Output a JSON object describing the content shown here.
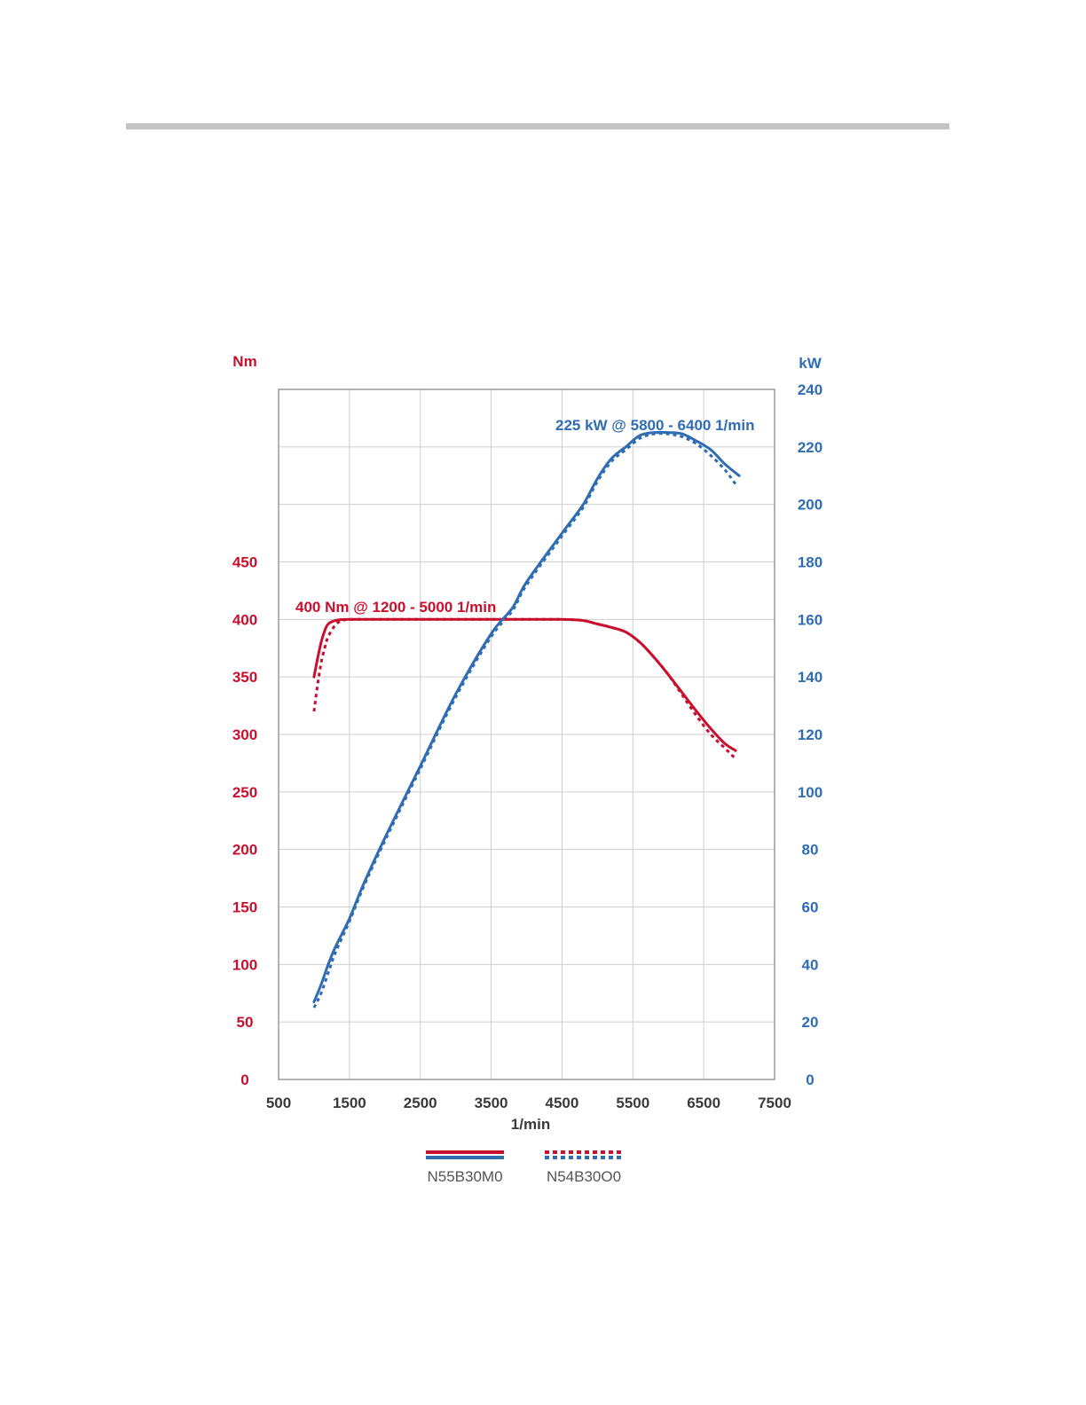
{
  "chart_data": {
    "type": "line",
    "title": "",
    "xlabel": "1/min",
    "xlim": [
      500,
      7500
    ],
    "x_ticks": [
      "500",
      "1500",
      "2500",
      "3500",
      "4500",
      "5500",
      "6500",
      "7500"
    ],
    "y_left": {
      "label": "Nm",
      "ticks": [
        "0",
        "50",
        "100",
        "150",
        "200",
        "250",
        "300",
        "350",
        "400",
        "450"
      ],
      "ylim": [
        0,
        600
      ],
      "color": "#c8102e"
    },
    "y_right": {
      "label": "kW",
      "ticks": [
        "0",
        "20",
        "40",
        "60",
        "80",
        "100",
        "120",
        "140",
        "160",
        "180",
        "200",
        "220",
        "240"
      ],
      "ylim": [
        0,
        240
      ],
      "color": "#2f6db3"
    },
    "grid": true,
    "annotations": {
      "torque": "400 Nm @ 1200 - 5000 1/min",
      "power": "225 kW @ 5800 - 6400 1/min"
    },
    "legend": {
      "placement": "bottom",
      "entries": [
        {
          "label": "N55B30M0",
          "style": "solid"
        },
        {
          "label": "N54B30O0",
          "style": "dotted"
        }
      ]
    },
    "series": [
      {
        "axis": "left",
        "style": "solid",
        "color": "#c8102e",
        "points": [
          [
            1000,
            350
          ],
          [
            1050,
            366
          ],
          [
            1100,
            380
          ],
          [
            1150,
            390
          ],
          [
            1200,
            396
          ],
          [
            1300,
            399
          ],
          [
            1500,
            400
          ],
          [
            2500,
            400
          ],
          [
            3500,
            400
          ],
          [
            4500,
            400
          ],
          [
            4800,
            399
          ],
          [
            5000,
            396
          ],
          [
            5200,
            393
          ],
          [
            5400,
            389
          ],
          [
            5600,
            380
          ],
          [
            5800,
            367
          ],
          [
            6000,
            352
          ],
          [
            6200,
            336
          ],
          [
            6400,
            320
          ],
          [
            6600,
            305
          ],
          [
            6800,
            292
          ],
          [
            6950,
            286
          ]
        ]
      },
      {
        "axis": "left",
        "style": "dotted",
        "color": "#c8102e",
        "points": [
          [
            1000,
            320
          ],
          [
            1050,
            343
          ],
          [
            1100,
            362
          ],
          [
            1150,
            375
          ],
          [
            1200,
            385
          ],
          [
            1300,
            395
          ],
          [
            1400,
            399
          ],
          [
            1600,
            400
          ],
          [
            2500,
            400
          ],
          [
            3500,
            400
          ],
          [
            4500,
            400
          ],
          [
            4800,
            399
          ],
          [
            5000,
            396
          ],
          [
            5200,
            393
          ],
          [
            5400,
            389
          ],
          [
            5600,
            380
          ],
          [
            5800,
            367
          ],
          [
            6000,
            352
          ],
          [
            6200,
            334
          ],
          [
            6400,
            316
          ],
          [
            6600,
            300
          ],
          [
            6800,
            288
          ],
          [
            6930,
            280
          ]
        ]
      },
      {
        "axis": "right",
        "style": "solid",
        "color": "#2f6db3",
        "points": [
          [
            1000,
            27
          ],
          [
            1100,
            33
          ],
          [
            1200,
            40
          ],
          [
            1300,
            46
          ],
          [
            1500,
            56
          ],
          [
            1700,
            68
          ],
          [
            2000,
            84
          ],
          [
            2500,
            109
          ],
          [
            3000,
            134
          ],
          [
            3500,
            155
          ],
          [
            3800,
            164
          ],
          [
            4000,
            173
          ],
          [
            4500,
            190
          ],
          [
            4800,
            200
          ],
          [
            5000,
            209
          ],
          [
            5200,
            216
          ],
          [
            5400,
            220
          ],
          [
            5600,
            224
          ],
          [
            5800,
            225
          ],
          [
            6000,
            225
          ],
          [
            6200,
            224.5
          ],
          [
            6400,
            222
          ],
          [
            6600,
            219
          ],
          [
            6800,
            214
          ],
          [
            7000,
            210
          ]
        ]
      },
      {
        "axis": "right",
        "style": "dotted",
        "color": "#2f6db3",
        "points": [
          [
            1000,
            25
          ],
          [
            1100,
            30
          ],
          [
            1200,
            37
          ],
          [
            1300,
            44
          ],
          [
            1500,
            55
          ],
          [
            1700,
            67
          ],
          [
            2000,
            83
          ],
          [
            2500,
            108
          ],
          [
            3000,
            133
          ],
          [
            3500,
            154
          ],
          [
            3800,
            163
          ],
          [
            4000,
            172
          ],
          [
            4500,
            189
          ],
          [
            4800,
            199
          ],
          [
            5000,
            208
          ],
          [
            5200,
            215
          ],
          [
            5400,
            219
          ],
          [
            5600,
            223
          ],
          [
            5800,
            224.5
          ],
          [
            6000,
            224.5
          ],
          [
            6200,
            223.5
          ],
          [
            6400,
            221
          ],
          [
            6600,
            217
          ],
          [
            6800,
            212
          ],
          [
            6950,
            207
          ]
        ]
      }
    ]
  }
}
